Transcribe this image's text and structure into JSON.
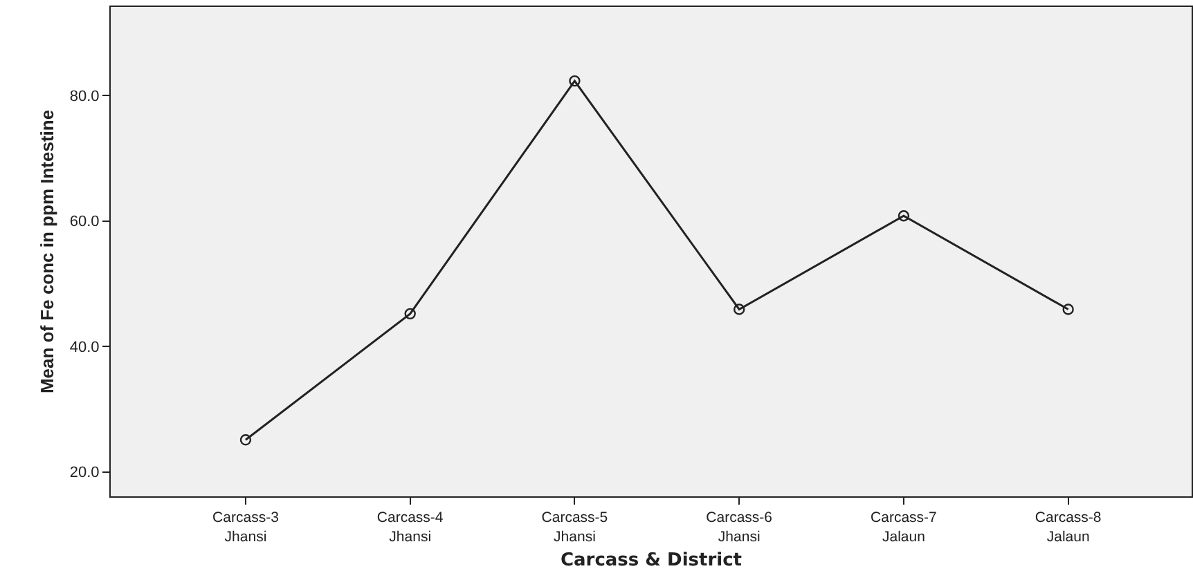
{
  "chart_data": {
    "type": "line",
    "xlabel": "Carcass & District",
    "ylabel": "Mean of Fe conc in ppm Intestine",
    "categories": [
      "Carcass-3\nJhansi",
      "Carcass-4\nJhansi",
      "Carcass-5\nJhansi",
      "Carcass-6\nJhansi",
      "Carcass-7\nJalaun",
      "Carcass-8\nJalaun"
    ],
    "series": [
      {
        "color": "#222222",
        "values": [
          25.1,
          45.2,
          82.3,
          45.9,
          60.8,
          45.9
        ]
      }
    ],
    "ylim": [
      16.1,
      94.1
    ],
    "yticks": [
      {
        "value": 20,
        "label": "20.0"
      },
      {
        "value": 40,
        "label": "40.0"
      },
      {
        "value": 60,
        "label": "60.0"
      },
      {
        "value": 80,
        "label": "80.0"
      }
    ],
    "grid": false,
    "marker": "circle",
    "line_style": "solid"
  }
}
